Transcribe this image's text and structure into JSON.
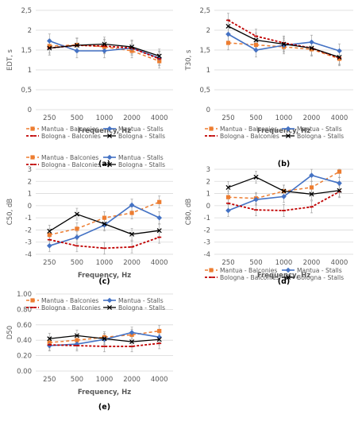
{
  "legend_labels": {
    "mb": "Mantua - Balconies",
    "ms": "Mantua - Stalls",
    "bb": "Bologna - Balconies",
    "bs": "Bologna - Stalls"
  },
  "colors": {
    "mb": "#ED7D31",
    "ms": "#4472C4",
    "bb": "#C00000",
    "bs": "#000000",
    "errorbar": "#A6A6A6",
    "grid": "#D9D9D9"
  },
  "chart_data": [
    {
      "id": "a",
      "type": "line",
      "panel_label": "(a)",
      "ylabel": "EDT, s",
      "xlabel": "Frequency, Hz",
      "categories": [
        "250",
        "500",
        "1000",
        "2000",
        "4000"
      ],
      "ylim": [
        0,
        2.5
      ],
      "yticks": [
        "0",
        "0,5",
        "1",
        "1,5",
        "2",
        "2,5"
      ],
      "legend_position": "bottom",
      "series": [
        {
          "key": "mb",
          "name": "Mantua - Balconies",
          "values": [
            1.6,
            1.63,
            1.58,
            1.48,
            1.22
          ]
        },
        {
          "key": "ms",
          "name": "Mantua - Stalls",
          "values": [
            1.73,
            1.48,
            1.48,
            1.55,
            1.3
          ]
        },
        {
          "key": "bb",
          "name": "Bologna - Balconies",
          "values": [
            1.55,
            1.62,
            1.6,
            1.55,
            1.28
          ]
        },
        {
          "key": "bs",
          "name": "Bologna - Stalls",
          "values": [
            1.55,
            1.62,
            1.65,
            1.58,
            1.35
          ]
        }
      ]
    },
    {
      "id": "b",
      "type": "line",
      "panel_label": "(b)",
      "ylabel": "T30, s",
      "xlabel": "Frequency, Hz",
      "categories": [
        "250",
        "500",
        "1000",
        "2000",
        "4000"
      ],
      "ylim": [
        0,
        2.5
      ],
      "yticks": [
        "0",
        "0,5",
        "1",
        "1,5",
        "2",
        "2,5"
      ],
      "legend_position": "bottom",
      "series": [
        {
          "key": "mb",
          "name": "Mantua - Balconies",
          "values": [
            1.68,
            1.63,
            1.58,
            1.52,
            1.28
          ]
        },
        {
          "key": "ms",
          "name": "Mantua - Stalls",
          "values": [
            1.9,
            1.5,
            1.62,
            1.7,
            1.48
          ]
        },
        {
          "key": "bb",
          "name": "Bologna - Balconies",
          "values": [
            2.25,
            1.85,
            1.68,
            1.55,
            1.3
          ]
        },
        {
          "key": "bs",
          "name": "Bologna - Stalls",
          "values": [
            2.1,
            1.75,
            1.65,
            1.55,
            1.32
          ]
        }
      ]
    },
    {
      "id": "c",
      "type": "line",
      "panel_label": "(c)",
      "ylabel": "C50, dB",
      "xlabel": "Frequency, Hz",
      "categories": [
        "250",
        "500",
        "1000",
        "2000",
        "4000"
      ],
      "ylim": [
        -4,
        3
      ],
      "yticks": [
        "-4",
        "-3",
        "-2",
        "-1",
        "0",
        "1",
        "2",
        "3"
      ],
      "legend_position": "top",
      "series": [
        {
          "key": "mb",
          "name": "Mantua - Balconies",
          "values": [
            -2.4,
            -1.9,
            -1.0,
            -0.6,
            0.3
          ]
        },
        {
          "key": "ms",
          "name": "Mantua - Stalls",
          "values": [
            -3.3,
            -2.6,
            -1.6,
            0.05,
            -1.0
          ]
        },
        {
          "key": "bb",
          "name": "Bologna - Balconies",
          "values": [
            -2.8,
            -3.3,
            -3.5,
            -3.4,
            -2.6
          ]
        },
        {
          "key": "bs",
          "name": "Bologna - Stalls",
          "values": [
            -2.1,
            -0.7,
            -1.5,
            -2.35,
            -2.05
          ]
        }
      ]
    },
    {
      "id": "d",
      "type": "line",
      "panel_label": "(d)",
      "ylabel": "C80, dB",
      "xlabel": "Frequency, Hz",
      "categories": [
        "250",
        "500",
        "1000",
        "2000",
        "4000"
      ],
      "ylim": [
        -4,
        3
      ],
      "yticks": [
        "-4",
        "-3",
        "-2",
        "-1",
        "0",
        "1",
        "2",
        "3"
      ],
      "legend_position": "bottom",
      "series": [
        {
          "key": "mb",
          "name": "Mantua - Balconies",
          "values": [
            0.7,
            0.6,
            1.2,
            1.5,
            2.8
          ]
        },
        {
          "key": "ms",
          "name": "Mantua - Stalls",
          "values": [
            -0.4,
            0.5,
            0.75,
            2.5,
            1.85
          ]
        },
        {
          "key": "bb",
          "name": "Bologna - Balconies",
          "values": [
            0.2,
            -0.35,
            -0.4,
            -0.1,
            1.15
          ]
        },
        {
          "key": "bs",
          "name": "Bologna - Stalls",
          "values": [
            1.5,
            2.35,
            1.2,
            0.95,
            1.25
          ]
        }
      ]
    },
    {
      "id": "e",
      "type": "line",
      "panel_label": "(e)",
      "ylabel": "D50",
      "xlabel": "Frequency, Hz",
      "categories": [
        "250",
        "500",
        "1000",
        "2000",
        "4000"
      ],
      "ylim": [
        0,
        1
      ],
      "yticks": [
        "0.00",
        "0.20",
        "0.40",
        "0.60",
        "0.80",
        "1.00"
      ],
      "legend_position": "top",
      "series": [
        {
          "key": "mb",
          "name": "Mantua - Balconies",
          "values": [
            0.37,
            0.4,
            0.44,
            0.47,
            0.52
          ]
        },
        {
          "key": "ms",
          "name": "Mantua - Stalls",
          "values": [
            0.33,
            0.35,
            0.41,
            0.5,
            0.44
          ]
        },
        {
          "key": "bb",
          "name": "Bologna - Balconies",
          "values": [
            0.34,
            0.33,
            0.32,
            0.32,
            0.36
          ]
        },
        {
          "key": "bs",
          "name": "Bologna - Stalls",
          "values": [
            0.42,
            0.46,
            0.42,
            0.38,
            0.41
          ]
        }
      ]
    }
  ]
}
